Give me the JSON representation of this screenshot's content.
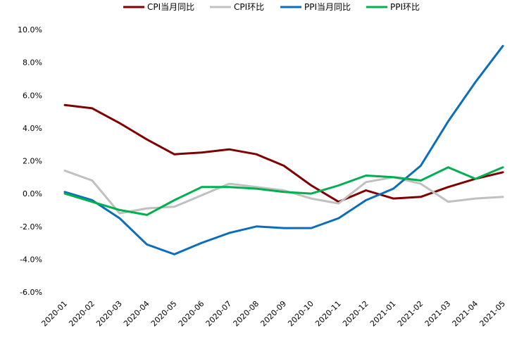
{
  "chart_data": {
    "type": "line",
    "title": "",
    "xlabel": "",
    "ylabel": "",
    "ylim": [
      -6.0,
      10.0
    ],
    "y_ticks": [
      10.0,
      8.0,
      6.0,
      4.0,
      2.0,
      0.0,
      -2.0,
      -4.0,
      -6.0
    ],
    "y_tick_labels": [
      "10.0%",
      "8.0%",
      "6.0%",
      "4.0%",
      "2.0%",
      "0.0%",
      "-2.0%",
      "-4.0%",
      "-6.0%"
    ],
    "grid": false,
    "legend_position": "top",
    "categories": [
      "2020-01",
      "2020-02",
      "2020-03",
      "2020-04",
      "2020-05",
      "2020-06",
      "2020-07",
      "2020-08",
      "2020-09",
      "2020-10",
      "2020-11",
      "2020-12",
      "2021-01",
      "2021-02",
      "2021-03",
      "2021-04",
      "2021-05"
    ],
    "series": [
      {
        "name": "CPI当月同比",
        "color": "#7f0000",
        "values": [
          5.4,
          5.2,
          4.3,
          3.3,
          2.4,
          2.5,
          2.7,
          2.4,
          1.7,
          0.5,
          -0.5,
          0.2,
          -0.3,
          -0.2,
          0.4,
          0.9,
          1.3
        ]
      },
      {
        "name": "CPI环比",
        "color": "#c0c0c0",
        "values": [
          1.4,
          0.8,
          -1.2,
          -0.9,
          -0.8,
          -0.1,
          0.6,
          0.4,
          0.2,
          -0.3,
          -0.6,
          0.7,
          1.0,
          0.6,
          -0.5,
          -0.3,
          -0.2
        ]
      },
      {
        "name": "PPI当月同比",
        "color": "#0a6ebd",
        "values": [
          0.1,
          -0.4,
          -1.5,
          -3.1,
          -3.7,
          -3.0,
          -2.4,
          -2.0,
          -2.1,
          -2.1,
          -1.5,
          -0.4,
          0.3,
          1.7,
          4.4,
          6.8,
          9.0
        ]
      },
      {
        "name": "PPI环比",
        "color": "#00b050",
        "values": [
          0.0,
          -0.5,
          -1.0,
          -1.3,
          -0.4,
          0.4,
          0.4,
          0.3,
          0.1,
          0.0,
          0.5,
          1.1,
          1.0,
          0.8,
          1.6,
          0.9,
          1.6
        ]
      }
    ]
  }
}
